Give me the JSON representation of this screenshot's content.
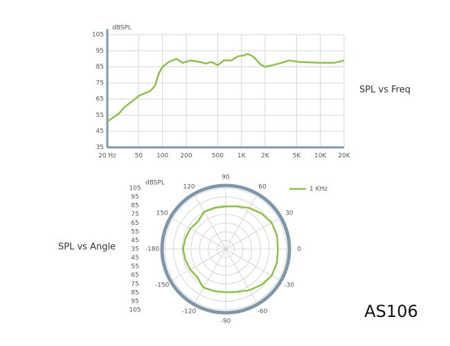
{
  "brand": "AS106",
  "chart_data": [
    {
      "type": "line",
      "title": "SPL vs Freq",
      "y_label": "dBSPL",
      "x_scale": "log",
      "grid": true,
      "color": "#8cc04b",
      "x": [
        20,
        28,
        33,
        45,
        50,
        70,
        80,
        90,
        100,
        120,
        150,
        180,
        230,
        300,
        350,
        420,
        500,
        600,
        750,
        900,
        1050,
        1200,
        1400,
        1750,
        2000,
        3000,
        4000,
        5500,
        10000,
        15000,
        20000
      ],
      "values": [
        51,
        56,
        60,
        65,
        67,
        70,
        73,
        81,
        85,
        88,
        90,
        87.5,
        89,
        88,
        87,
        88,
        86,
        89,
        89,
        91.5,
        92,
        93,
        91.5,
        86.5,
        85,
        87,
        89,
        88,
        87.5,
        87.5,
        89
      ],
      "xlim": [
        20,
        20000
      ],
      "ylim": [
        35,
        105
      ],
      "xticks": [
        {
          "value": 20,
          "label": "20 Hz"
        },
        50,
        100,
        200,
        500,
        {
          "value": 1000,
          "label": "1K"
        },
        {
          "value": 2000,
          "label": "2K"
        },
        {
          "value": 5000,
          "label": "5K"
        },
        {
          "value": 10000,
          "label": "10K"
        },
        {
          "value": 20000,
          "label": "20K"
        }
      ],
      "yticks": [
        35,
        45,
        55,
        65,
        75,
        85,
        95,
        105
      ]
    },
    {
      "type": "polar",
      "title": "SPL vs Angle",
      "r_label": "dBSPL",
      "grid": true,
      "legend": "top-right",
      "theta": [
        0,
        15,
        30,
        45,
        60,
        75,
        90,
        105,
        120,
        135,
        150,
        165,
        180,
        -165,
        -150,
        -135,
        -120,
        -105,
        -90,
        -75,
        -60,
        -45,
        -30,
        -15
      ],
      "series": [
        {
          "name": "1 KHz",
          "color": "#8cc04b",
          "values": [
            95,
            96,
            96,
            93,
            89.5,
            86,
            84,
            84,
            84.5,
            80,
            82,
            83,
            84,
            83,
            82,
            81,
            86,
            85,
            84.5,
            86,
            89.5,
            93,
            96,
            96
          ]
        }
      ],
      "rlim": [
        35,
        105
      ],
      "rticks": [
        35,
        45,
        55,
        65,
        75,
        85,
        95,
        105
      ],
      "thetaticks": [
        90,
        60,
        30,
        0,
        -30,
        -60,
        -90,
        -120,
        -150,
        -180,
        150,
        120
      ]
    }
  ]
}
